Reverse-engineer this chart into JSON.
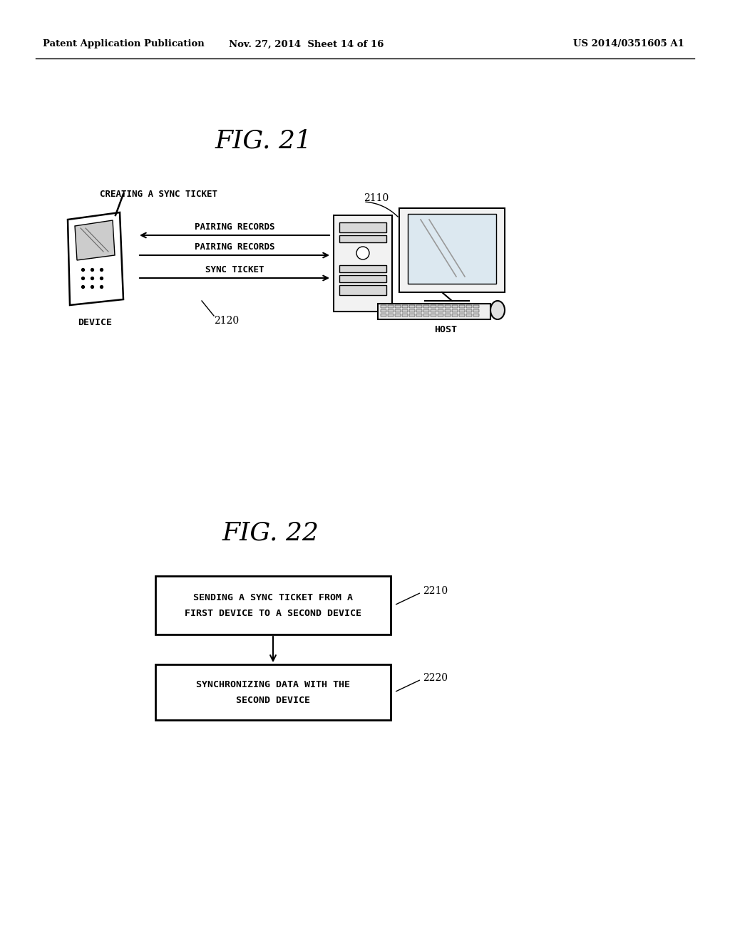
{
  "bg_color": "#ffffff",
  "header_left": "Patent Application Publication",
  "header_mid": "Nov. 27, 2014  Sheet 14 of 16",
  "header_right": "US 2014/0351605 A1",
  "fig21_title": "FIG. 21",
  "fig21_label_top": "CREATING A SYNC TICKET",
  "fig21_arrow1_label": "PAIRING RECORDS",
  "fig21_arrow2_label": "PAIRING RECORDS",
  "fig21_arrow3_label": "SYNC TICKET",
  "fig21_ref_host": "2110",
  "fig21_ref_middle": "2120",
  "fig21_label_device": "DEVICE",
  "fig21_label_host": "HOST",
  "fig22_title": "FIG. 22",
  "box1_text_line1": "SENDING A SYNC TICKET FROM A",
  "box1_text_line2": "FIRST DEVICE TO A SECOND DEVICE",
  "box1_ref": "2210",
  "box2_text_line1": "SYNCHRONIZING DATA WITH THE",
  "box2_text_line2": "SECOND DEVICE",
  "box2_ref": "2220"
}
